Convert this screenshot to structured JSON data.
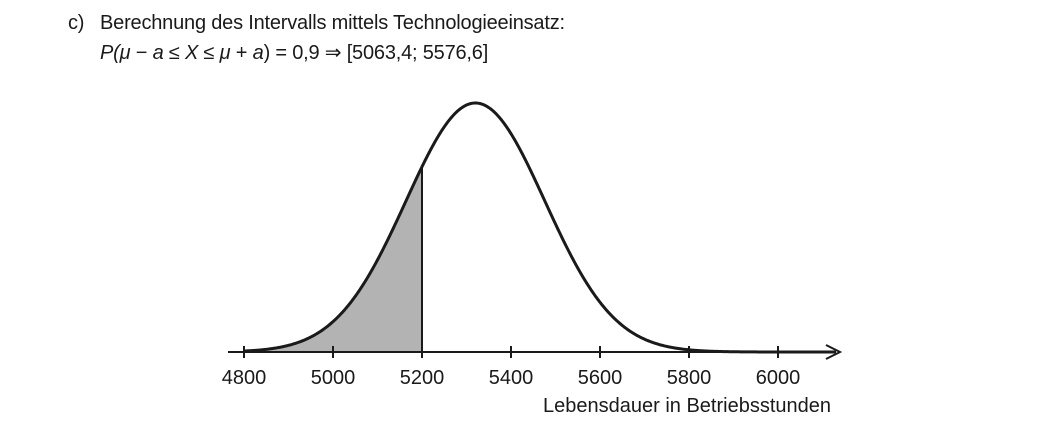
{
  "task": {
    "label": "c)",
    "heading": "Berechnung des Intervalls mittels Technologieeinsatz:",
    "formula": {
      "p_open": "P(",
      "mu1": "μ",
      "minus": " − ",
      "a1": "a",
      "leq1": " ≤ ",
      "x": "X",
      "leq2": " ≤ ",
      "mu2": "μ",
      "plus": " + ",
      "a2": "a",
      "close_eq": ") = 0,9  ⇒  ",
      "interval": "[5063,4; 5576,6]"
    }
  },
  "chart_data": {
    "type": "area",
    "distribution": "normal",
    "mean": 5320,
    "sd": 156,
    "x_range": [
      4800,
      6130
    ],
    "shaded_region": [
      4800,
      5200
    ],
    "x_ticks": [
      4800,
      5000,
      5200,
      5400,
      5600,
      5800,
      6000
    ],
    "x_tick_labels": [
      "4800",
      "5000",
      "5200",
      "5400",
      "5600",
      "5800",
      "6000"
    ],
    "xlabel": "Lebensdauer in Betriebsstunden",
    "colors": {
      "curve": "#1a1a1a",
      "shade": "#b3b3b3",
      "axis": "#1a1a1a"
    }
  }
}
